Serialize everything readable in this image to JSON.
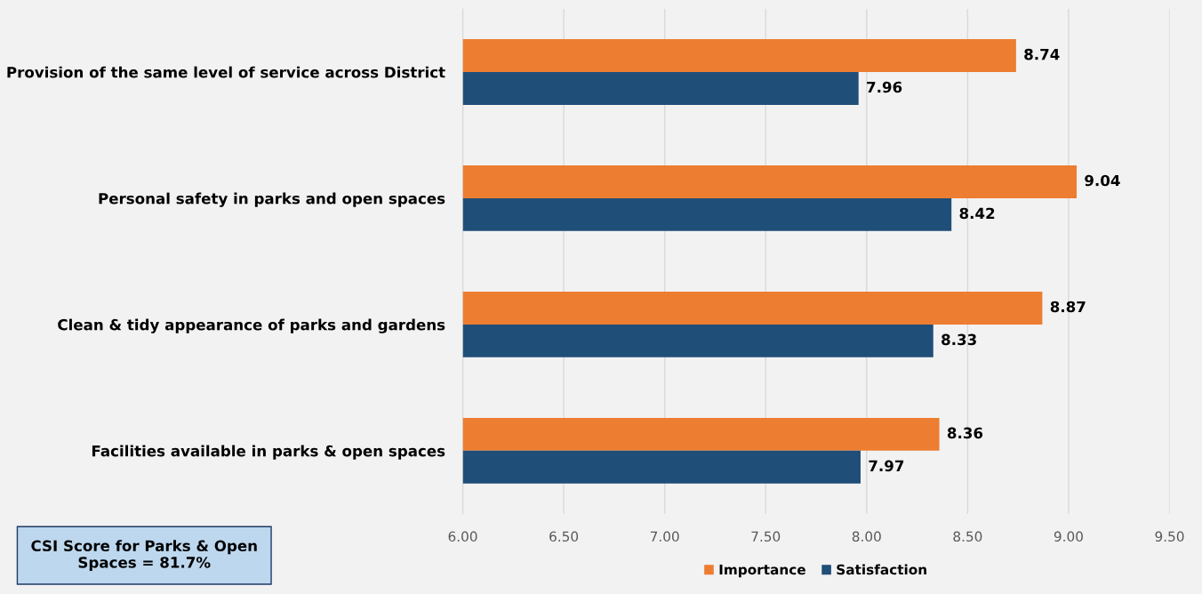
{
  "chart_data": {
    "type": "bar",
    "orientation": "horizontal",
    "categories": [
      "Provision of the same level of service across District",
      "Personal safety in parks and open spaces",
      "Clean & tidy appearance of parks and gardens",
      "Facilities available in parks & open spaces"
    ],
    "series": [
      {
        "name": "Importance",
        "color": "#ed7d31",
        "values": [
          8.74,
          9.04,
          8.87,
          8.36
        ]
      },
      {
        "name": "Satisfaction",
        "color": "#1f4e79",
        "values": [
          7.96,
          8.42,
          8.33,
          7.97
        ]
      }
    ],
    "xlim": [
      6,
      9.5
    ],
    "xticks": [
      {
        "value": 6,
        "label": "6.00"
      },
      {
        "value": 6.5,
        "label": "6.50"
      },
      {
        "value": 7,
        "label": "7.00"
      },
      {
        "value": 7.5,
        "label": "7.50"
      },
      {
        "value": 8,
        "label": "8.00"
      },
      {
        "value": 8.5,
        "label": "8.50"
      },
      {
        "value": 9,
        "label": "9.00"
      },
      {
        "value": 9.5,
        "label": "9.50"
      }
    ],
    "grid": "x",
    "legend": "bottom",
    "data_labels": true,
    "annotations": [
      "CSI Score for Parks & Open Spaces = 81.7%"
    ]
  }
}
